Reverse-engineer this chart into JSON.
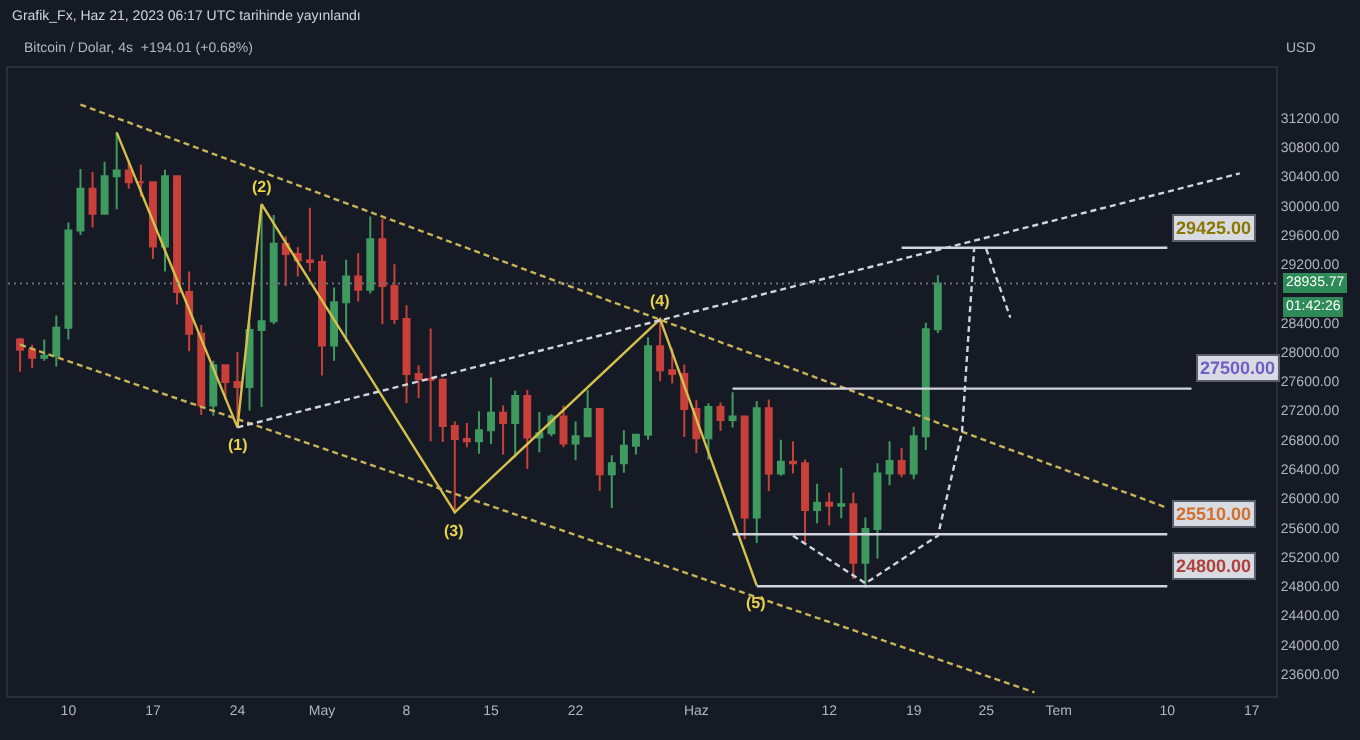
{
  "chart_data": {
    "type": "candlestick",
    "title": "Grafik_Fx, Haz 21, 2023 06:17 UTC tarihinde yayınlandı",
    "subtitle": "Bitcoin / Dolar, 4s  +194.01 (+0.68%)",
    "ylabel": "USD",
    "x": [
      "2023-04-06",
      "2023-04-07",
      "2023-04-08",
      "2023-04-09",
      "2023-04-10",
      "2023-04-11",
      "2023-04-12",
      "2023-04-13",
      "2023-04-14",
      "2023-04-15",
      "2023-04-16",
      "2023-04-17",
      "2023-04-18",
      "2023-04-19",
      "2023-04-20",
      "2023-04-21",
      "2023-04-22",
      "2023-04-23",
      "2023-04-24",
      "2023-04-25",
      "2023-04-26",
      "2023-04-27",
      "2023-04-28",
      "2023-04-29",
      "2023-04-30",
      "2023-05-01",
      "2023-05-02",
      "2023-05-03",
      "2023-05-04",
      "2023-05-05",
      "2023-05-06",
      "2023-05-07",
      "2023-05-08",
      "2023-05-09",
      "2023-05-10",
      "2023-05-11",
      "2023-05-12",
      "2023-05-13",
      "2023-05-14",
      "2023-05-15",
      "2023-05-16",
      "2023-05-17",
      "2023-05-18",
      "2023-05-19",
      "2023-05-20",
      "2023-05-21",
      "2023-05-22",
      "2023-05-23",
      "2023-05-24",
      "2023-05-25",
      "2023-05-26",
      "2023-05-27",
      "2023-05-28",
      "2023-05-29",
      "2023-05-30",
      "2023-05-31",
      "2023-06-01",
      "2023-06-02",
      "2023-06-03",
      "2023-06-04",
      "2023-06-05",
      "2023-06-06",
      "2023-06-07",
      "2023-06-08",
      "2023-06-09",
      "2023-06-10",
      "2023-06-11",
      "2023-06-12",
      "2023-06-13",
      "2023-06-14",
      "2023-06-15",
      "2023-06-16",
      "2023-06-17",
      "2023-06-18",
      "2023-06-19",
      "2023-06-20",
      "2023-06-21"
    ],
    "ohlc": [
      [
        28170,
        28190,
        27730,
        28030
      ],
      [
        28030,
        28100,
        27780,
        27920
      ],
      [
        27920,
        28170,
        27880,
        27950
      ],
      [
        27950,
        28500,
        27800,
        28330
      ],
      [
        28330,
        29770,
        28170,
        29660
      ],
      [
        29660,
        30500,
        29600,
        30230
      ],
      [
        30230,
        30460,
        29700,
        29890
      ],
      [
        29890,
        30600,
        29880,
        30400
      ],
      [
        30400,
        31000,
        29950,
        30480
      ],
      [
        30480,
        30620,
        30230,
        30320
      ],
      [
        30320,
        30560,
        30120,
        30320
      ],
      [
        30320,
        30330,
        29270,
        29440
      ],
      [
        29440,
        30490,
        29100,
        30400
      ],
      [
        30400,
        30410,
        28650,
        28820
      ],
      [
        28820,
        29100,
        28010,
        28250
      ],
      [
        28250,
        28370,
        27140,
        27270
      ],
      [
        27270,
        27880,
        27130,
        27820
      ],
      [
        27820,
        27820,
        27350,
        27590
      ],
      [
        27590,
        28000,
        26970,
        27520
      ],
      [
        27520,
        28400,
        27200,
        28300
      ],
      [
        28300,
        30020,
        27250,
        28420
      ],
      [
        28420,
        29870,
        28380,
        29480
      ],
      [
        29480,
        29580,
        28900,
        29340
      ],
      [
        29340,
        29430,
        29030,
        29250
      ],
      [
        29250,
        29970,
        29100,
        29230
      ],
      [
        29230,
        29330,
        27680,
        28090
      ],
      [
        28090,
        28880,
        27880,
        28680
      ],
      [
        28680,
        29260,
        28140,
        29030
      ],
      [
        29030,
        29350,
        28690,
        28850
      ],
      [
        28850,
        29850,
        28800,
        29540
      ],
      [
        29540,
        29820,
        28380,
        28900
      ],
      [
        28900,
        29200,
        28380,
        28450
      ],
      [
        28450,
        28640,
        27300,
        27700
      ],
      [
        27700,
        27820,
        27370,
        27630
      ],
      [
        27630,
        28320,
        26780,
        27620
      ],
      [
        27620,
        27640,
        26770,
        26990
      ],
      [
        26990,
        27050,
        25810,
        26810
      ],
      [
        26810,
        27030,
        26700,
        26780
      ],
      [
        26780,
        27190,
        26610,
        26930
      ],
      [
        26930,
        27650,
        26740,
        27170
      ],
      [
        27170,
        27270,
        26600,
        27030
      ],
      [
        27030,
        27470,
        26560,
        27400
      ],
      [
        27400,
        27480,
        26400,
        26830
      ],
      [
        26830,
        27180,
        26630,
        26890
      ],
      [
        26890,
        27150,
        26850,
        27120
      ],
      [
        27120,
        27270,
        26700,
        26750
      ],
      [
        26750,
        27050,
        26520,
        26850
      ],
      [
        26850,
        27480,
        26840,
        27220
      ],
      [
        27220,
        27230,
        26100,
        26330
      ],
      [
        26330,
        26590,
        25870,
        26480
      ],
      [
        26480,
        26930,
        26350,
        26720
      ],
      [
        26720,
        26880,
        26600,
        26870
      ],
      [
        26870,
        28200,
        26800,
        28080
      ],
      [
        28080,
        28450,
        27600,
        27750
      ],
      [
        27750,
        28050,
        27570,
        27700
      ],
      [
        27700,
        27830,
        26840,
        27220
      ],
      [
        27220,
        27340,
        26620,
        26820
      ],
      [
        26820,
        27300,
        26530,
        27250
      ],
      [
        27250,
        27310,
        26920,
        27070
      ],
      [
        27070,
        27450,
        26970,
        27120
      ],
      [
        27120,
        27130,
        25440,
        25740
      ],
      [
        25740,
        27330,
        25390,
        27230
      ],
      [
        27230,
        27350,
        26100,
        26340
      ],
      [
        26340,
        26800,
        26310,
        26500
      ],
      [
        26500,
        26780,
        26340,
        26480
      ],
      [
        26480,
        26530,
        25400,
        25840
      ],
      [
        25840,
        26200,
        25660,
        25940
      ],
      [
        25940,
        26080,
        25630,
        25900
      ],
      [
        25900,
        26420,
        25730,
        25920
      ],
      [
        25920,
        26080,
        24900,
        25120
      ],
      [
        25120,
        25740,
        24780,
        25580
      ],
      [
        25580,
        26480,
        25180,
        26340
      ],
      [
        26340,
        26780,
        26180,
        26510
      ],
      [
        26510,
        26690,
        26290,
        26340
      ],
      [
        26340,
        26980,
        26260,
        26850
      ],
      [
        26850,
        28400,
        26660,
        28310
      ],
      [
        28310,
        29050,
        28260,
        28935.77
      ]
    ],
    "colors": [
      "#c9403a",
      "#c9403a",
      "#3f9a5f",
      "#3f9a5f",
      "#3f9a5f",
      "#3f9a5f",
      "#c9403a",
      "#3f9a5f",
      "#3f9a5f",
      "#c9403a",
      "#c9403a",
      "#c9403a",
      "#3f9a5f",
      "#c9403a",
      "#c9403a",
      "#c9403a",
      "#3f9a5f",
      "#c9403a",
      "#c9403a",
      "#3f9a5f",
      "#3f9a5f",
      "#3f9a5f",
      "#c9403a",
      "#c9403a",
      "#c9403a",
      "#c9403a",
      "#3f9a5f",
      "#3f9a5f",
      "#c9403a",
      "#3f9a5f",
      "#c9403a",
      "#c9403a",
      "#c9403a",
      "#c9403a",
      "#c9403a",
      "#c9403a",
      "#c9403a",
      "#c9403a",
      "#3f9a5f",
      "#3f9a5f",
      "#c9403a",
      "#3f9a5f",
      "#c9403a",
      "#3f9a5f",
      "#3f9a5f",
      "#c9403a",
      "#3f9a5f",
      "#3f9a5f",
      "#c9403a",
      "#3f9a5f",
      "#3f9a5f",
      "#3f9a5f",
      "#3f9a5f",
      "#c9403a",
      "#c9403a",
      "#c9403a",
      "#c9403a",
      "#3f9a5f",
      "#c9403a",
      "#3f9a5f",
      "#c9403a",
      "#3f9a5f",
      "#c9403a",
      "#3f9a5f",
      "#c9403a",
      "#c9403a",
      "#3f9a5f",
      "#c9403a",
      "#3f9a5f",
      "#c9403a",
      "#3f9a5f",
      "#3f9a5f",
      "#3f9a5f",
      "#c9403a",
      "#3f9a5f",
      "#3f9a5f",
      "#3f9a5f"
    ],
    "series": [
      {
        "type": "line",
        "color": "#d4c04a",
        "line_style": "solid",
        "x": [
          "2023-04-14",
          "2023-04-24",
          "2023-04-26",
          "2023-05-12",
          "2023-05-29",
          "2023-06-06"
        ],
        "values": [
          31000,
          26970,
          30020,
          25810,
          28450,
          24810
        ]
      },
      {
        "type": "line",
        "color": "#c9b458",
        "line_style": "dashed",
        "x": [
          "2023-04-11",
          "2023-07-10"
        ],
        "values": [
          31380,
          25870
        ]
      },
      {
        "type": "line",
        "color": "#c9b458",
        "line_style": "dashed",
        "x": [
          "2023-04-06",
          "2023-06-29"
        ],
        "values": [
          28100,
          23350
        ]
      },
      {
        "type": "line",
        "color": "#d1d4dc",
        "line_style": "dashed",
        "x": [
          "2023-04-24",
          "2023-07-16"
        ],
        "values": [
          26970,
          30440
        ]
      },
      {
        "type": "line",
        "color": "#d1d4dc",
        "line_style": "dashed",
        "x": [
          "2023-06-09",
          "2023-06-15",
          "2023-06-21",
          "2023-06-23",
          "2023-06-24"
        ],
        "values": [
          25490,
          24840,
          25490,
          26910,
          29410
        ]
      },
      {
        "type": "line",
        "color": "#d1d4dc",
        "line_style": "dashed",
        "x": [
          "2023-06-25",
          "2023-06-27"
        ],
        "values": [
          29410,
          28470
        ]
      },
      {
        "type": "line",
        "color": "#d1d4dc",
        "line_style": "solid",
        "x": [
          "2023-06-18",
          "2023-07-10"
        ],
        "values": [
          29425,
          29425
        ]
      },
      {
        "type": "line",
        "color": "#d1d4dc",
        "line_style": "solid",
        "x": [
          "2023-06-04",
          "2023-07-12"
        ],
        "values": [
          27500,
          27500
        ]
      },
      {
        "type": "line",
        "color": "#d1d4dc",
        "line_style": "solid",
        "x": [
          "2023-06-04",
          "2023-07-10"
        ],
        "values": [
          25510,
          25510
        ]
      },
      {
        "type": "line",
        "color": "#d1d4dc",
        "line_style": "solid",
        "x": [
          "2023-06-06",
          "2023-07-10"
        ],
        "values": [
          24800,
          24800
        ]
      }
    ],
    "annotations": [
      {
        "text": "(1)",
        "x": "2023-04-24",
        "y": 26970
      },
      {
        "text": "(2)",
        "x": "2023-04-26",
        "y": 30020
      },
      {
        "text": "(3)",
        "x": "2023-05-12",
        "y": 25810
      },
      {
        "text": "(4)",
        "x": "2023-05-29",
        "y": 28450
      },
      {
        "text": "(5)",
        "x": "2023-06-06",
        "y": 24810
      },
      {
        "text": "29425.00",
        "x": "2023-07-10",
        "y": 29425
      },
      {
        "text": "27500.00",
        "x": "2023-07-12",
        "y": 27500
      },
      {
        "text": "25510.00",
        "x": "2023-07-10",
        "y": 25510
      },
      {
        "text": "24800.00",
        "x": "2023-07-10",
        "y": 24800
      },
      "01:42:26"
    ],
    "ref_lines": [
      {
        "axis": "y",
        "value": 28935.77,
        "label": "28935.77",
        "color": "#6b6f7a",
        "line_style": "dotted"
      }
    ],
    "xlim": [
      "2023-04-05",
      "2023-07-19"
    ],
    "xticks": [
      {
        "value": "2023-04-10",
        "label": "10"
      },
      {
        "value": "2023-04-17",
        "label": "17"
      },
      {
        "value": "2023-04-24",
        "label": "24"
      },
      {
        "value": "2023-05-01",
        "label": "May"
      },
      {
        "value": "2023-05-08",
        "label": "8"
      },
      {
        "value": "2023-05-15",
        "label": "15"
      },
      {
        "value": "2023-05-22",
        "label": "22"
      },
      {
        "value": "2023-06-01",
        "label": "Haz"
      },
      {
        "value": "2023-06-12",
        "label": "12"
      },
      {
        "value": "2023-06-19",
        "label": "19"
      },
      {
        "value": "2023-06-25",
        "label": "25"
      },
      {
        "value": "2023-07-01",
        "label": "Tem"
      },
      {
        "value": "2023-07-10",
        "label": "10"
      },
      {
        "value": "2023-07-17",
        "label": "17"
      }
    ],
    "ylim": [
      23300,
      31880
    ],
    "yticks": [
      {
        "value": 23600,
        "label": "23600.00"
      },
      {
        "value": 24000,
        "label": "24000.00"
      },
      {
        "value": 24400,
        "label": "24400.00"
      },
      {
        "value": 24800,
        "label": "24800.00"
      },
      {
        "value": 25200,
        "label": "25200.00"
      },
      {
        "value": 25600,
        "label": "25600.00"
      },
      {
        "value": 26000,
        "label": "26000.00"
      },
      {
        "value": 26400,
        "label": "26400.00"
      },
      {
        "value": 26800,
        "label": "26800.00"
      },
      {
        "value": 27200,
        "label": "27200.00"
      },
      {
        "value": 27600,
        "label": "27600.00"
      },
      {
        "value": 28000,
        "label": "28000.00"
      },
      {
        "value": 28400,
        "label": "28400.00"
      },
      {
        "value": 29200,
        "label": "29200.00"
      },
      {
        "value": 29600,
        "label": "29600.00"
      },
      {
        "value": 30000,
        "label": "30000.00"
      },
      {
        "value": 30400,
        "label": "30400.00"
      },
      {
        "value": 30800,
        "label": "30800.00"
      },
      {
        "value": 31200,
        "label": "31200.00"
      }
    ]
  }
}
